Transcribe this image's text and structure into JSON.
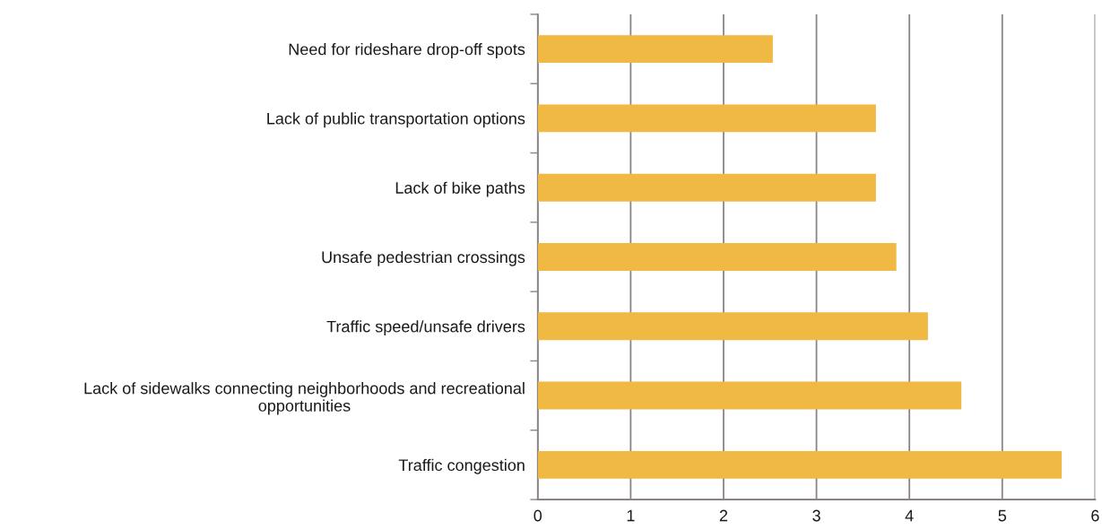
{
  "chart_data": {
    "type": "bar",
    "orientation": "horizontal",
    "categories": [
      "Need for rideshare drop-off spots",
      "Lack of public transportation options",
      "Lack of bike paths",
      "Unsafe pedestrian crossings",
      "Traffic speed/unsafe drivers",
      "Lack of sidewalks connecting neighborhoods and recreational\nopportunities",
      "Traffic congestion"
    ],
    "values": [
      2.53,
      3.64,
      3.64,
      3.86,
      4.2,
      4.56,
      5.64
    ],
    "color": "#efb944",
    "xlim": [
      0,
      6
    ],
    "xticks": [
      0,
      1,
      2,
      3,
      4,
      5,
      6
    ],
    "grid": "x"
  }
}
